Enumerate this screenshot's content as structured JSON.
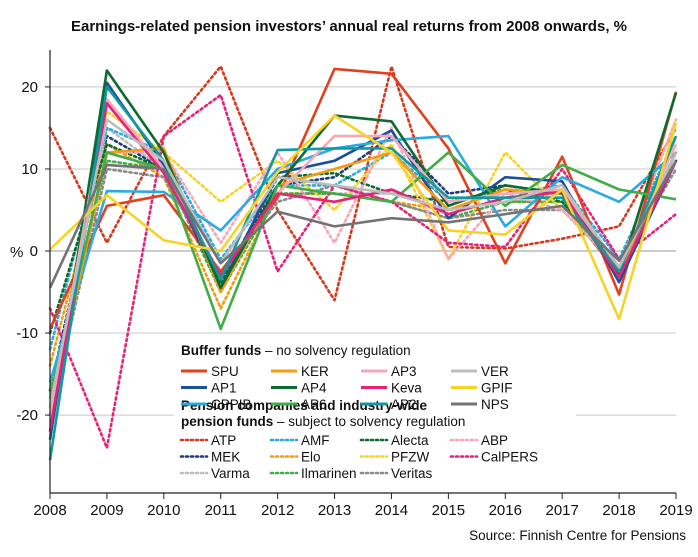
{
  "chart_data": {
    "type": "line",
    "title": "Earnings-related pension investors’ annual real returns from 2008 onwards, %",
    "ylabel": "%",
    "xlabel": "",
    "source": "Source: Finnish Centre for Pensions",
    "x": [
      2008,
      2009,
      2010,
      2011,
      2012,
      2013,
      2014,
      2015,
      2016,
      2017,
      2018,
      2019
    ],
    "y_ticks": [
      20,
      10,
      0,
      -10,
      -20
    ],
    "ylim": [
      -29.5,
      24.5
    ],
    "grid": "horizontal",
    "legend": {
      "location": "lower-middle",
      "group1_title_bold": "Buffer funds",
      "group1_title_rest": " – no solvency regulation",
      "group2_title_line1": "Pension companies and industry-wide",
      "group2_title_line2_bold": "pension funds",
      "group2_title_line2_rest": " – subject to solvency regulation"
    },
    "series": [
      {
        "name": "SPU",
        "group": "buffer",
        "color": "#e2401f",
        "dashed": false,
        "values": [
          -9.5,
          5.5,
          6.8,
          -2.5,
          6.5,
          22.2,
          21.6,
          12.5,
          -1.5,
          11.5,
          -5.3,
          19.4
        ]
      },
      {
        "name": "AP1",
        "group": "buffer",
        "color": "#1e4e9c",
        "dashed": false,
        "values": [
          -23,
          20.5,
          10.5,
          -4.5,
          9.5,
          11,
          14.7,
          4,
          9,
          8.5,
          -3.8,
          11
        ]
      },
      {
        "name": "CPPIB",
        "group": "buffer",
        "color": "#29abe2",
        "dashed": false,
        "values": [
          -16,
          7.3,
          7.2,
          2.5,
          10,
          12.5,
          13.5,
          14,
          3,
          9,
          6,
          12
        ]
      },
      {
        "name": "KER",
        "group": "buffer",
        "color": "#f39c12",
        "dashed": false,
        "values": [
          -20,
          12,
          12.5,
          -5,
          8,
          10,
          12,
          5,
          7.5,
          7,
          -3,
          14
        ]
      },
      {
        "name": "AP4",
        "group": "buffer",
        "color": "#0d6b2f",
        "dashed": false,
        "values": [
          -22,
          22,
          12,
          -4.5,
          8,
          16.5,
          15.8,
          5.5,
          8,
          7,
          -3,
          19.3
        ]
      },
      {
        "name": "AP6",
        "group": "buffer",
        "color": "#3fae49",
        "dashed": false,
        "values": [
          -18,
          12,
          10,
          -9.5,
          8,
          7,
          6,
          12,
          5.5,
          10.5,
          7.5,
          6.3
        ]
      },
      {
        "name": "AP3",
        "group": "buffer",
        "color": "#f7a8b8",
        "dashed": false,
        "values": [
          -20,
          18.5,
          10,
          -3,
          7,
          14,
          14,
          6,
          7,
          7.5,
          -2,
          13
        ]
      },
      {
        "name": "Keva",
        "group": "buffer",
        "color": "#e4227a",
        "dashed": false,
        "values": [
          -22,
          18,
          9.5,
          -3,
          7,
          6,
          7.5,
          4.5,
          6.5,
          7.2,
          -3.2,
          11
        ]
      },
      {
        "name": "AP2",
        "group": "buffer",
        "color": "#0e9aa0",
        "dashed": false,
        "values": [
          -25.5,
          20,
          11,
          -3.5,
          12.3,
          12.5,
          12.5,
          6.5,
          6.5,
          6.5,
          -2.5,
          14
        ]
      },
      {
        "name": "VER",
        "group": "buffer",
        "color": "#bdbdbd",
        "dashed": false,
        "values": [
          -19,
          16,
          11,
          -1.5,
          9,
          8,
          7,
          5,
          6,
          8,
          -2,
          12
        ]
      },
      {
        "name": "GPIF",
        "group": "buffer",
        "color": "#f5d327",
        "dashed": false,
        "values": [
          0.2,
          6.8,
          1.3,
          0,
          9.6,
          16.5,
          12,
          2.5,
          2,
          7.5,
          -8.3,
          15.6
        ]
      },
      {
        "name": "NPS",
        "group": "buffer",
        "color": "#737373",
        "dashed": false,
        "values": [
          -4.5,
          10.5,
          10,
          -1.5,
          4.8,
          3,
          4,
          3.5,
          4.5,
          5.5,
          -1.2,
          11
        ]
      },
      {
        "name": "ATP",
        "group": "solvency",
        "color": "#d43a1f",
        "dashed": true,
        "values": [
          15,
          1,
          14,
          22.5,
          5,
          -6,
          22.5,
          0.5,
          0.3,
          1.5,
          3,
          15
        ]
      },
      {
        "name": "MEK",
        "group": "solvency",
        "color": "#1e3d7a",
        "dashed": true,
        "values": [
          -17,
          14,
          10,
          -3.5,
          8,
          9,
          14,
          7,
          8,
          7,
          -3,
          11
        ]
      },
      {
        "name": "Varma",
        "group": "solvency",
        "color": "#bdbdbd",
        "dashed": true,
        "values": [
          -19,
          15,
          10,
          -3,
          7,
          7,
          7,
          5,
          6,
          7,
          -2,
          12
        ]
      },
      {
        "name": "AMF",
        "group": "solvency",
        "color": "#29abe2",
        "dashed": true,
        "values": [
          -12,
          15,
          12,
          -1,
          8,
          8,
          12,
          6,
          7,
          8,
          -1,
          14
        ]
      },
      {
        "name": "Elo",
        "group": "solvency",
        "color": "#f39c12",
        "dashed": true,
        "values": [
          -14,
          13,
          9,
          -7,
          7,
          7,
          6,
          5,
          6,
          6,
          -3,
          12
        ]
      },
      {
        "name": "Ilmarinen",
        "group": "solvency",
        "color": "#3fae49",
        "dashed": true,
        "values": [
          -17,
          11,
          10,
          -5,
          7,
          7,
          6,
          4,
          6,
          6,
          -3,
          12
        ]
      },
      {
        "name": "Alecta",
        "group": "solvency",
        "color": "#0d6b2f",
        "dashed": true,
        "values": [
          -10,
          13,
          10,
          -4,
          9,
          9.5,
          7,
          6,
          7.5,
          6,
          -2,
          12
        ]
      },
      {
        "name": "PFZW",
        "group": "solvency",
        "color": "#f5d327",
        "dashed": true,
        "values": [
          -19,
          17,
          12,
          6,
          11,
          5,
          13,
          -1,
          12,
          5,
          -2,
          16
        ]
      },
      {
        "name": "Veritas",
        "group": "solvency",
        "color": "#8a8a8a",
        "dashed": true,
        "values": [
          -20,
          10,
          9,
          -3,
          6,
          8,
          6,
          4,
          5,
          5,
          -2,
          10
        ]
      },
      {
        "name": "ABP",
        "group": "solvency",
        "color": "#f7a8b8",
        "dashed": true,
        "values": [
          -20,
          12,
          12,
          1,
          12,
          1,
          15,
          -1,
          7,
          5,
          -2,
          16
        ]
      },
      {
        "name": "CalPERS",
        "group": "solvency",
        "color": "#e4227a",
        "dashed": true,
        "values": [
          -7,
          -24,
          14,
          19,
          -2.5,
          8,
          6,
          1,
          0.5,
          10,
          -1,
          4.5
        ]
      }
    ]
  }
}
